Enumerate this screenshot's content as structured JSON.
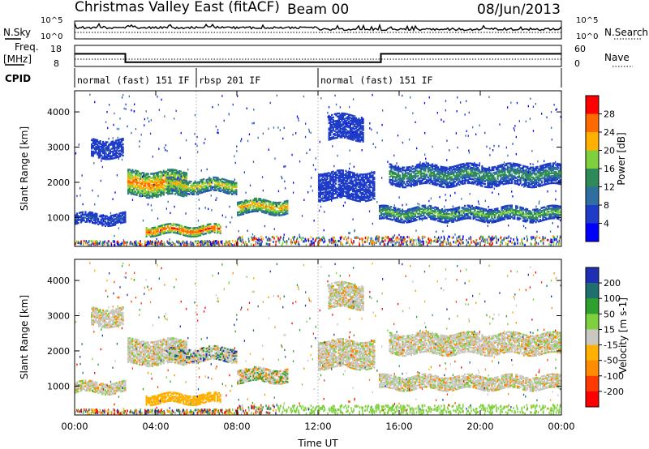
{
  "header": {
    "station": "Christmas Valley East (fitACF)",
    "beam": "Beam 00",
    "date": "08/Jun/2013"
  },
  "noise_panel": {
    "left_label": "N.Sky",
    "right_label": "N.Search",
    "left_ticks": [
      "10^5",
      "10^0"
    ],
    "right_ticks": [
      "10^5",
      "10^0"
    ]
  },
  "freq_panel": {
    "left_label_line1": "Freq.",
    "left_label_line2": "[MHz]",
    "right_label": "Nave",
    "left_ticks": [
      "18",
      "8"
    ],
    "right_ticks": [
      "60",
      "0"
    ]
  },
  "cpid": {
    "label": "CPID",
    "segments": [
      {
        "label": "normal (fast) 151 IF",
        "start_h": 0,
        "end_h": 6
      },
      {
        "label": "rbsp 201 IF",
        "start_h": 6,
        "end_h": 12
      },
      {
        "label": "normal (fast) 151 IF",
        "start_h": 12,
        "end_h": 24
      }
    ]
  },
  "power_panel": {
    "ylabel": "Slant Range [km]",
    "yticks": [
      "4000",
      "3000",
      "2000",
      "1000"
    ],
    "colorbar_label": "Power [dB]",
    "colorbar_ticks": [
      "28",
      "24",
      "20",
      "16",
      "12",
      "8",
      "4"
    ],
    "colors": [
      "#ff0000",
      "#ff6a00",
      "#ffb000",
      "#7fcf3f",
      "#2e8b57",
      "#2f6f9f",
      "#1e3cc8",
      "#0000ff"
    ]
  },
  "velocity_panel": {
    "ylabel": "Slant Range [km]",
    "yticks": [
      "4000",
      "3000",
      "2000",
      "1000"
    ],
    "colorbar_label": "Velocity [m s-1]",
    "colorbar_ticks": [
      "200",
      "100",
      "50",
      "15",
      "-15",
      "-50",
      "-100",
      "-200"
    ],
    "colors": [
      "#1e2fb4",
      "#1f6f6f",
      "#2ea02e",
      "#7fd03f",
      "#c8c8c0",
      "#ffb000",
      "#ff8c00",
      "#ff3a00",
      "#ff0000"
    ]
  },
  "xaxis": {
    "label": "Time UT",
    "ticks": [
      "00:00",
      "04:00",
      "08:00",
      "12:00",
      "16:00",
      "20:00",
      "00:00"
    ]
  },
  "chart_data": {
    "type": "heatmap",
    "title": "Christmas Valley East (fitACF) Beam 00 08/Jun/2013",
    "xlabel": "Time UT",
    "ylabel": "Slant Range [km]",
    "xlim": [
      0,
      24
    ],
    "ylim": [
      180,
      4600
    ],
    "frequency_MHz": [
      {
        "start_h": 0,
        "end_h": 2.5,
        "value": 14
      },
      {
        "start_h": 2.5,
        "end_h": 15.1,
        "value": 10
      },
      {
        "start_h": 15.1,
        "end_h": 24,
        "value": 14
      }
    ],
    "power_features": [
      {
        "t0": 2.6,
        "t1": 5.5,
        "r0": 1600,
        "r1": 2300,
        "power_dB": 26
      },
      {
        "t0": 4.5,
        "t1": 8.0,
        "r0": 1700,
        "r1": 2100,
        "power_dB": 22
      },
      {
        "t0": 8.0,
        "t1": 10.5,
        "r0": 1100,
        "r1": 1500,
        "power_dB": 24
      },
      {
        "t0": 3.5,
        "t1": 7.2,
        "r0": 500,
        "r1": 750,
        "power_dB": 28
      },
      {
        "t0": 0.0,
        "t1": 2.5,
        "r0": 800,
        "r1": 1100,
        "power_dB": 10
      },
      {
        "t0": 0.8,
        "t1": 2.4,
        "r0": 2700,
        "r1": 3200,
        "power_dB": 8
      },
      {
        "t0": 12.0,
        "t1": 14.8,
        "r0": 1500,
        "r1": 2300,
        "power_dB": 6
      },
      {
        "t0": 15.0,
        "t1": 24.0,
        "r0": 900,
        "r1": 1300,
        "power_dB": 18
      },
      {
        "t0": 15.5,
        "t1": 24.0,
        "r0": 1900,
        "r1": 2500,
        "power_dB": 16
      },
      {
        "t0": 12.5,
        "t1": 14.2,
        "r0": 3200,
        "r1": 3900,
        "power_dB": 6
      }
    ]
  }
}
